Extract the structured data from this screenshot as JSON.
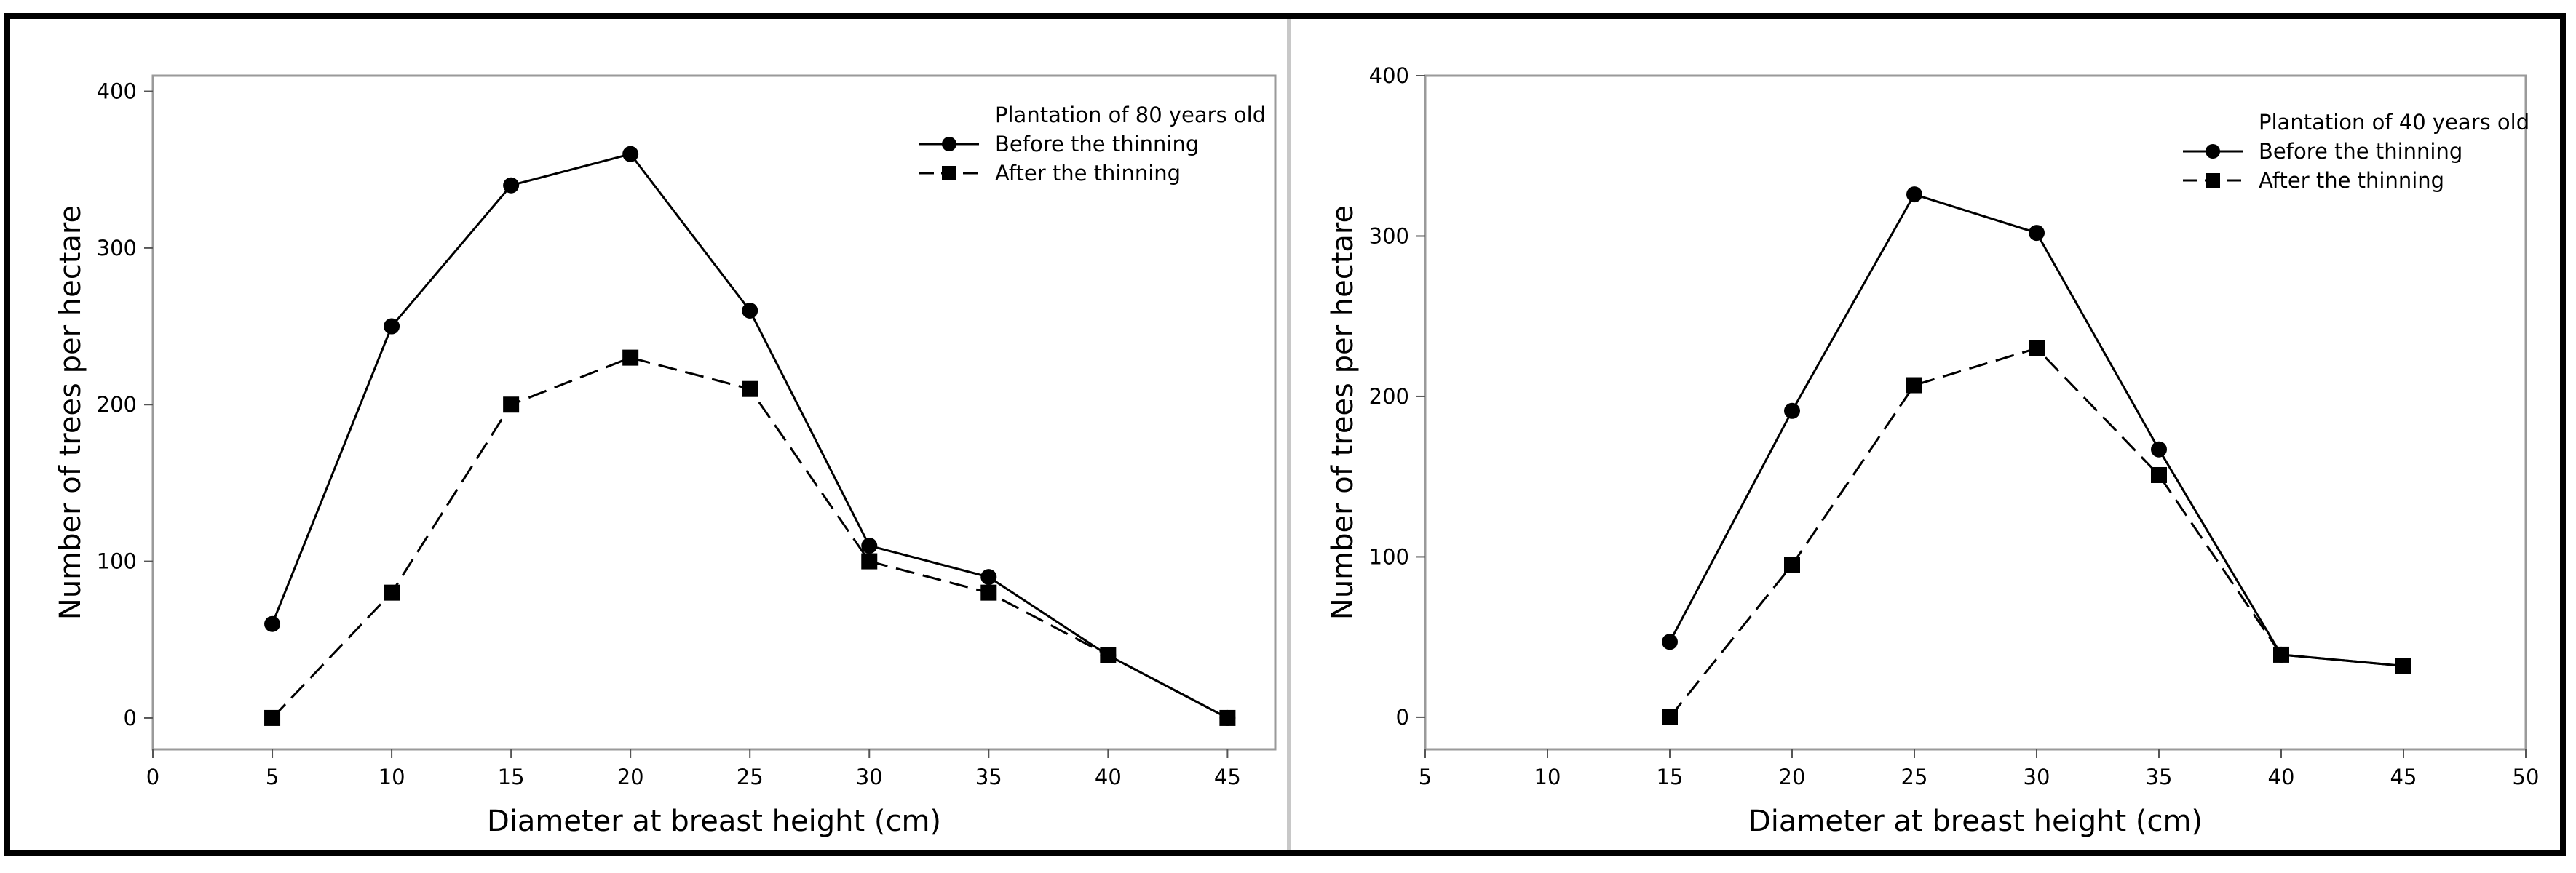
{
  "chart_data": [
    {
      "type": "line",
      "legend_title": "Plantation of 80 years old",
      "xlabel": "Diameter at breast height (cm)",
      "ylabel": "Number of trees per hectare",
      "xlim": [
        0,
        47
      ],
      "ylim": [
        -20,
        410
      ],
      "xticks": [
        0,
        5,
        10,
        15,
        20,
        25,
        30,
        35,
        40,
        45
      ],
      "yticks": [
        0,
        100,
        200,
        300,
        400
      ],
      "legend_position": "top-right",
      "series": [
        {
          "name": "Before the thinning",
          "marker": "circle",
          "style": "solid",
          "x": [
            5,
            10,
            15,
            20,
            25,
            30,
            35,
            40,
            45
          ],
          "y": [
            60,
            250,
            340,
            360,
            260,
            110,
            90,
            40,
            0
          ]
        },
        {
          "name": "After the thinning",
          "marker": "square",
          "style": "dashed",
          "x": [
            5,
            10,
            15,
            20,
            25,
            30,
            35,
            40,
            45
          ],
          "y": [
            0,
            80,
            200,
            230,
            210,
            100,
            80,
            40,
            0
          ]
        }
      ]
    },
    {
      "type": "line",
      "legend_title": "Plantation of 40 years old",
      "xlabel": "Diameter at breast height (cm)",
      "ylabel": "Number of trees per hectare",
      "xlim": [
        5,
        50
      ],
      "ylim": [
        -20,
        400
      ],
      "xticks": [
        5,
        10,
        15,
        20,
        25,
        30,
        35,
        40,
        45,
        50
      ],
      "yticks": [
        0,
        100,
        200,
        300,
        400
      ],
      "legend_position": "top-right",
      "series": [
        {
          "name": "Before the thinning",
          "marker": "circle",
          "style": "solid",
          "x": [
            15,
            20,
            25,
            30,
            35,
            40,
            45
          ],
          "y": [
            47,
            191,
            326,
            302,
            167,
            39,
            32
          ]
        },
        {
          "name": "After the thinning",
          "marker": "square",
          "style": "dashed",
          "x": [
            15,
            20,
            25,
            30,
            35,
            40,
            45
          ],
          "y": [
            0,
            95,
            207,
            230,
            151,
            39,
            32
          ]
        }
      ]
    }
  ]
}
